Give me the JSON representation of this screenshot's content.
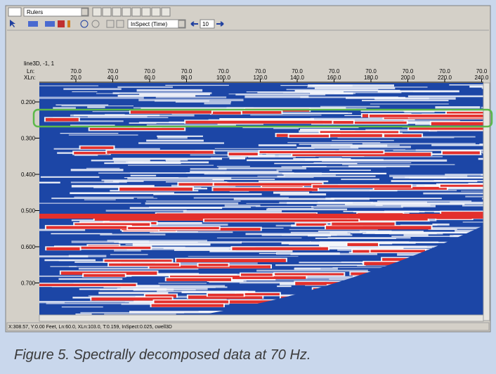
{
  "toolbar": {
    "ruler_select": "Rulers",
    "inspect_select": "InSpect (Time)",
    "step_value": "10"
  },
  "header": {
    "line_label": "line3D, -1, 1",
    "ln_label": "Ln:",
    "xln_label": "XLn:",
    "columns": [
      {
        "ln": "70.0",
        "xln": "20.0"
      },
      {
        "ln": "70.0",
        "xln": "40.0"
      },
      {
        "ln": "70.0",
        "xln": "60.0"
      },
      {
        "ln": "70.0",
        "xln": "80.0"
      },
      {
        "ln": "70.0",
        "xln": "100.0"
      },
      {
        "ln": "70.0",
        "xln": "120.0"
      },
      {
        "ln": "70.0",
        "xln": "140.0"
      },
      {
        "ln": "70.0",
        "xln": "160.0"
      },
      {
        "ln": "70.0",
        "xln": "180.0"
      },
      {
        "ln": "70.0",
        "xln": "200.0"
      },
      {
        "ln": "70.0",
        "xln": "220.0"
      },
      {
        "ln": "70.0",
        "xln": "240.0"
      }
    ]
  },
  "time_labels": [
    "0.200",
    "0.300",
    "0.400",
    "0.500",
    "0.600",
    "0.700"
  ],
  "status_bar": "X:308.57, Y:0.00 Feet, Ln:60.0, XLn:103.0, T:0.159, InSpect:0.025, cwell3D",
  "caption": "Figure 5. Spectrally decomposed data at 70 Hz."
}
